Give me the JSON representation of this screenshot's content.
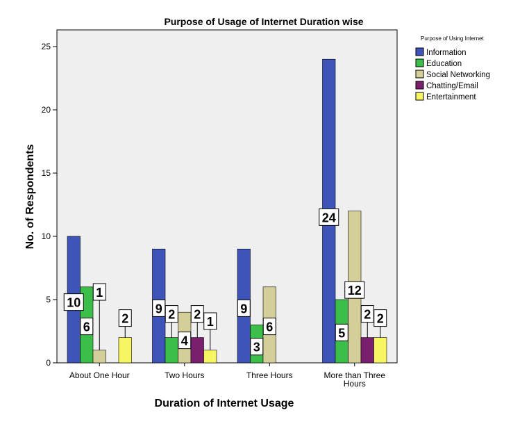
{
  "chart_data": {
    "type": "bar",
    "title": "Purpose of Usage of Internet Duration wise",
    "xlabel": "Duration of Internet Usage",
    "ylabel": "No. of Respondents",
    "ylim": [
      0,
      26
    ],
    "yticks": [
      0,
      5,
      10,
      15,
      20,
      25
    ],
    "categories": [
      [
        "About One Hour"
      ],
      [
        "Two Hours"
      ],
      [
        "Three Hours"
      ],
      [
        "More than Three",
        "Hours"
      ]
    ],
    "legend_title": "Purpose of Using Internet",
    "legend_position": "top-right",
    "series": [
      {
        "name": "Information",
        "color": "#3e54b8",
        "values": [
          10,
          9,
          9,
          24
        ],
        "labels": [
          "10",
          "9",
          "9",
          "24"
        ]
      },
      {
        "name": "Education",
        "color": "#3cbf4a",
        "values": [
          6,
          2,
          3,
          5
        ],
        "labels": [
          "6",
          "2",
          "3",
          "5"
        ]
      },
      {
        "name": "Social Networking",
        "color": "#d4cf99",
        "values": [
          1,
          4,
          6,
          12
        ],
        "labels": [
          "1",
          "4",
          "6",
          "12"
        ]
      },
      {
        "name": "Chatting/Email",
        "color": "#7a1f6e",
        "values": [
          0,
          2,
          0,
          2
        ],
        "labels": [
          null,
          "2",
          null,
          "2"
        ]
      },
      {
        "name": "Entertainment",
        "color": "#f7f561",
        "values": [
          2,
          1,
          0,
          2
        ],
        "labels": [
          "2",
          "1",
          null,
          "2"
        ]
      }
    ],
    "plot_background": "#efefef",
    "grid": false
  }
}
